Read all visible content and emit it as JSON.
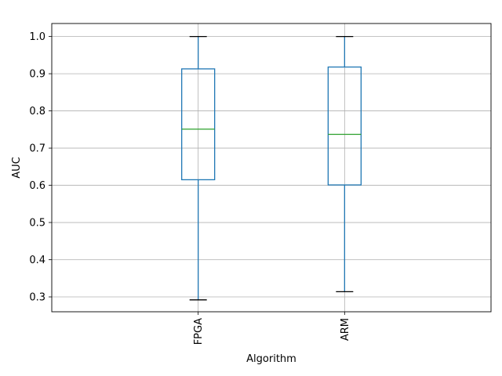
{
  "chart_data": {
    "type": "box",
    "title": "",
    "xlabel": "Algorithm",
    "ylabel": "AUC",
    "ylim": [
      0.26,
      1.035
    ],
    "yticks": [
      "0.3",
      "0.4",
      "0.5",
      "0.6",
      "0.7",
      "0.8",
      "0.9",
      "1.0"
    ],
    "grid": true,
    "categories": [
      "FPGA",
      "ARM"
    ],
    "boxes": [
      {
        "category": "FPGA",
        "whisker_low": 0.292,
        "q1": 0.615,
        "median": 0.751,
        "q3": 0.913,
        "whisker_high": 1.0
      },
      {
        "category": "ARM",
        "whisker_low": 0.314,
        "q1": 0.601,
        "median": 0.737,
        "q3": 0.918,
        "whisker_high": 1.0
      }
    ],
    "colors": {
      "box": "#1f77b4",
      "median": "#2ca02c",
      "cap": "#000000",
      "grid": "#b0b0b0",
      "axis": "#000000"
    }
  }
}
